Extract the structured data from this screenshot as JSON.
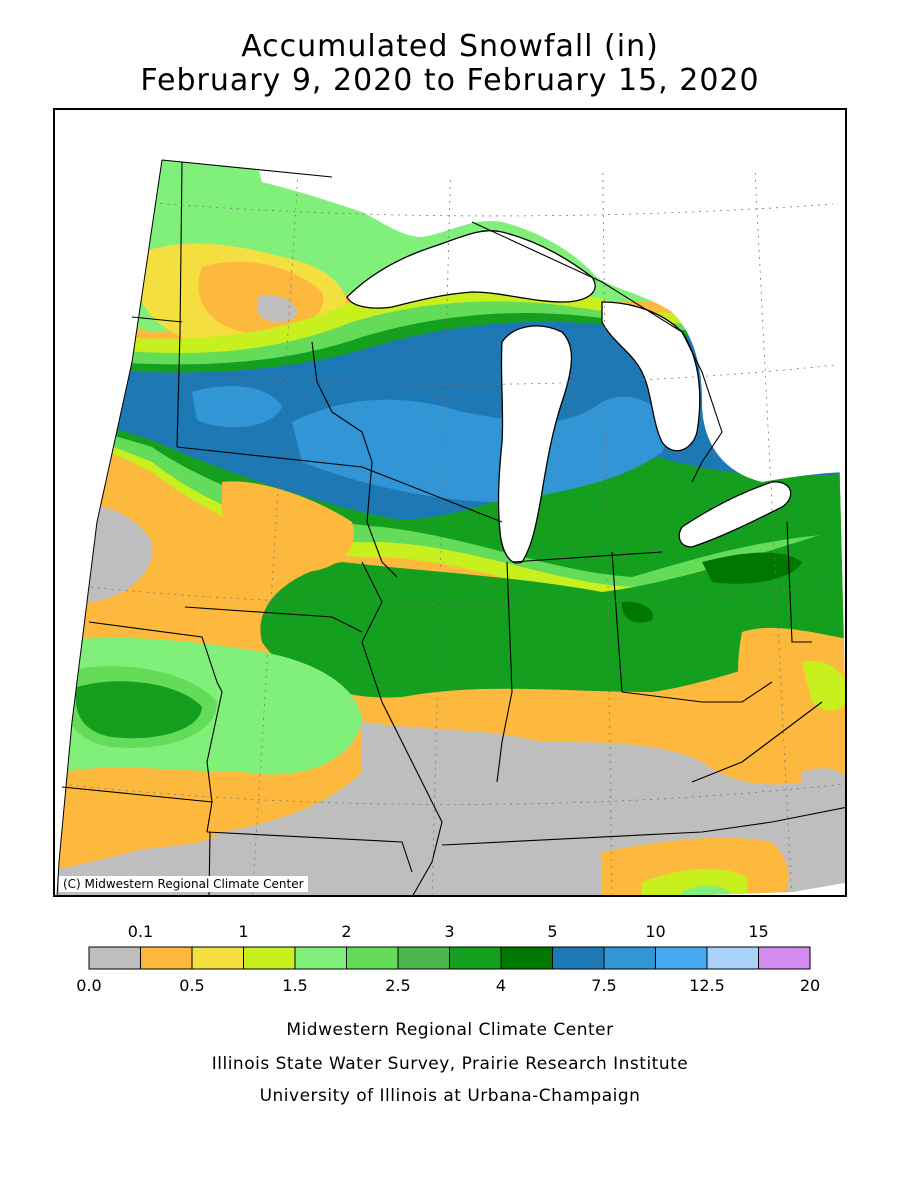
{
  "title_line1": "Accumulated Snowfall (in)",
  "title_line2": "February 9, 2020 to February 15, 2020",
  "copyright": "(C) Midwestern Regional Climate Center",
  "legend": {
    "top_labels": [
      "0.1",
      "1",
      "2",
      "3",
      "5",
      "10",
      "15"
    ],
    "bottom_labels": [
      "0.0",
      "0.5",
      "1.5",
      "2.5",
      "4",
      "7.5",
      "12.5",
      "20"
    ],
    "colors": [
      "#bebebe",
      "#fdb83e",
      "#f5de40",
      "#c8ef1e",
      "#80f07a",
      "#64dc5a",
      "#4cb44c",
      "#14a01e",
      "#007800",
      "#1e78b4",
      "#3296d6",
      "#46aaf0",
      "#aad2fa",
      "#d28cf0"
    ]
  },
  "footer": {
    "line1": "Midwestern Regional Climate Center",
    "line2": "Illinois State Water Survey, Prairie Research Institute",
    "line3": "University of Illinois at Urbana-Champaign"
  }
}
